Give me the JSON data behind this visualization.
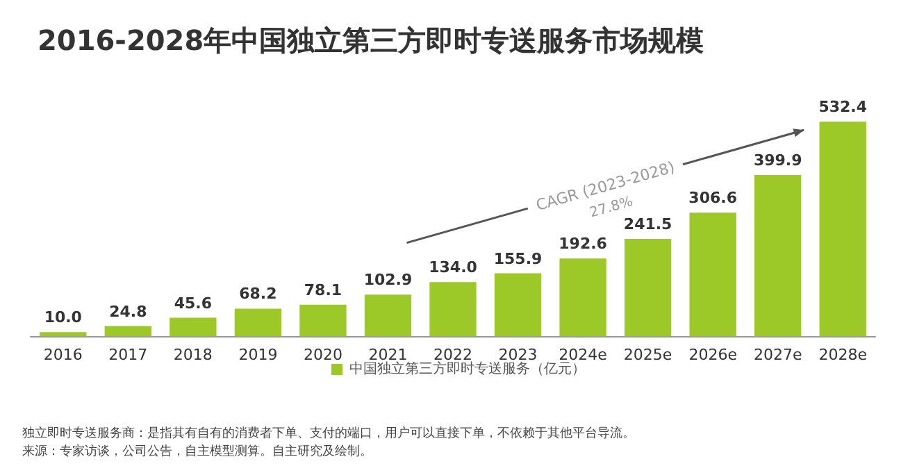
{
  "chart_data": {
    "type": "bar",
    "title": "2016-2028年中国独立第三方即时专送服务市场规模",
    "categories": [
      "2016",
      "2017",
      "2018",
      "2019",
      "2020",
      "2021",
      "2022",
      "2023",
      "2024e",
      "2025e",
      "2026e",
      "2027e",
      "2028e"
    ],
    "series": [
      {
        "name": "中国独立第三方即时专送服务（亿元）",
        "color": "#9cc928",
        "values": [
          10.0,
          24.8,
          45.6,
          68.2,
          78.1,
          102.9,
          134.0,
          155.9,
          192.6,
          241.5,
          306.6,
          399.9,
          532.4
        ],
        "value_labels": [
          "10.0",
          "24.8",
          "45.6",
          "68.2",
          "78.1",
          "102.9",
          "134.0",
          "155.9",
          "192.6",
          "241.5",
          "306.6",
          "399.9",
          "532.4"
        ]
      }
    ],
    "legend": "bottom",
    "annotations": [
      "CAGR (2023-2028)",
      "27.8%",
      "独立即时专送服务商：是指其有自有的消费者下单、支付的端口，用户可以直接下单，不依赖于其他平台导流。",
      "来源：专家访谈，公司公告，自主模型测算。自主研究及绘制。"
    ]
  }
}
